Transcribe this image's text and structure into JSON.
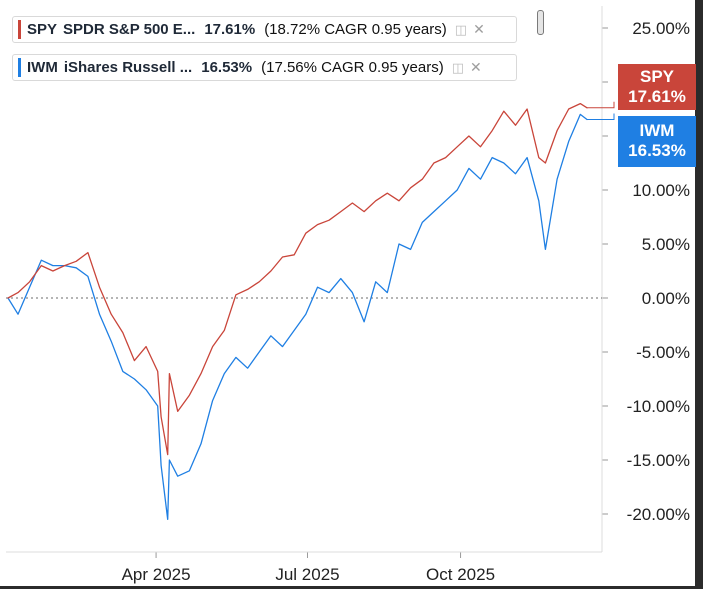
{
  "legend": [
    {
      "ticker": "SPY",
      "name": "SPDR S&P 500 E...",
      "pct": "17.61%",
      "cagr": "(18.72% CAGR 0.95 years)",
      "color": "#c9453a",
      "icon": "layers-icon",
      "close": "close-icon"
    },
    {
      "ticker": "IWM",
      "name": "iShares Russell ...",
      "pct": "16.53%",
      "cagr": "(17.56% CAGR 0.95 years)",
      "color": "#1f7fe3",
      "icon": "layers-icon",
      "close": "close-icon"
    }
  ],
  "price_tags": [
    {
      "ticker": "SPY",
      "value": "17.61%",
      "color": "#c9453a"
    },
    {
      "ticker": "IWM",
      "value": "16.53%",
      "color": "#1f7fe3"
    }
  ],
  "chart_data": {
    "type": "line",
    "title": "",
    "xlabel": "",
    "ylabel": "",
    "x_ticks": [
      "Apr 2025",
      "Jul 2025",
      "Oct 2025"
    ],
    "y_ticks": [
      "25.00%",
      "20.00%",
      "15.00%",
      "10.00%",
      "5.00%",
      "0.00%",
      "-5.00%",
      "-10.00%",
      "-15.00%",
      "-20.00%"
    ],
    "ylim": [
      -24,
      26
    ],
    "baseline": 0,
    "grid": false,
    "legend_position": "top-left",
    "series": [
      {
        "name": "SPY",
        "color": "#c9453a",
        "values": [
          [
            "2025-01-02",
            0.0
          ],
          [
            "2025-01-08",
            0.5
          ],
          [
            "2025-01-15",
            1.5
          ],
          [
            "2025-01-22",
            3.0
          ],
          [
            "2025-01-29",
            2.5
          ],
          [
            "2025-02-05",
            3.0
          ],
          [
            "2025-02-12",
            3.4
          ],
          [
            "2025-02-19",
            4.2
          ],
          [
            "2025-02-26",
            1.0
          ],
          [
            "2025-03-05",
            -1.5
          ],
          [
            "2025-03-12",
            -3.2
          ],
          [
            "2025-03-19",
            -5.8
          ],
          [
            "2025-03-26",
            -4.5
          ],
          [
            "2025-04-02",
            -6.8
          ],
          [
            "2025-04-04",
            -11.0
          ],
          [
            "2025-04-08",
            -14.5
          ],
          [
            "2025-04-09",
            -7.0
          ],
          [
            "2025-04-14",
            -10.5
          ],
          [
            "2025-04-21",
            -9.0
          ],
          [
            "2025-04-28",
            -7.0
          ],
          [
            "2025-05-05",
            -4.5
          ],
          [
            "2025-05-12",
            -3.0
          ],
          [
            "2025-05-19",
            0.3
          ],
          [
            "2025-05-26",
            0.8
          ],
          [
            "2025-06-02",
            1.5
          ],
          [
            "2025-06-09",
            2.5
          ],
          [
            "2025-06-16",
            3.8
          ],
          [
            "2025-06-23",
            4.0
          ],
          [
            "2025-06-30",
            6.0
          ],
          [
            "2025-07-07",
            6.8
          ],
          [
            "2025-07-14",
            7.2
          ],
          [
            "2025-07-21",
            8.0
          ],
          [
            "2025-07-28",
            8.8
          ],
          [
            "2025-08-04",
            8.0
          ],
          [
            "2025-08-11",
            9.0
          ],
          [
            "2025-08-18",
            9.7
          ],
          [
            "2025-08-25",
            9.0
          ],
          [
            "2025-09-01",
            10.2
          ],
          [
            "2025-09-08",
            11.0
          ],
          [
            "2025-09-15",
            12.5
          ],
          [
            "2025-09-22",
            13.0
          ],
          [
            "2025-09-29",
            14.0
          ],
          [
            "2025-10-06",
            15.0
          ],
          [
            "2025-10-13",
            14.0
          ],
          [
            "2025-10-20",
            15.5
          ],
          [
            "2025-10-27",
            17.3
          ],
          [
            "2025-11-03",
            16.0
          ],
          [
            "2025-11-10",
            17.5
          ],
          [
            "2025-11-17",
            13.0
          ],
          [
            "2025-11-21",
            12.5
          ],
          [
            "2025-11-28",
            15.5
          ],
          [
            "2025-12-05",
            17.5
          ],
          [
            "2025-12-12",
            18.0
          ],
          [
            "2025-12-16",
            17.61
          ]
        ]
      },
      {
        "name": "IWM",
        "color": "#1f7fe3",
        "values": [
          [
            "2025-01-02",
            0.0
          ],
          [
            "2025-01-08",
            -1.5
          ],
          [
            "2025-01-15",
            1.0
          ],
          [
            "2025-01-22",
            3.5
          ],
          [
            "2025-01-29",
            3.0
          ],
          [
            "2025-02-05",
            3.0
          ],
          [
            "2025-02-12",
            2.8
          ],
          [
            "2025-02-19",
            2.0
          ],
          [
            "2025-02-26",
            -1.5
          ],
          [
            "2025-03-05",
            -4.0
          ],
          [
            "2025-03-12",
            -6.8
          ],
          [
            "2025-03-19",
            -7.5
          ],
          [
            "2025-03-26",
            -8.5
          ],
          [
            "2025-04-02",
            -10.0
          ],
          [
            "2025-04-04",
            -15.5
          ],
          [
            "2025-04-08",
            -20.5
          ],
          [
            "2025-04-09",
            -15.0
          ],
          [
            "2025-04-14",
            -16.5
          ],
          [
            "2025-04-21",
            -16.0
          ],
          [
            "2025-04-28",
            -13.5
          ],
          [
            "2025-05-05",
            -9.5
          ],
          [
            "2025-05-12",
            -7.0
          ],
          [
            "2025-05-19",
            -5.5
          ],
          [
            "2025-05-26",
            -6.5
          ],
          [
            "2025-06-02",
            -5.0
          ],
          [
            "2025-06-09",
            -3.5
          ],
          [
            "2025-06-16",
            -4.5
          ],
          [
            "2025-06-23",
            -3.0
          ],
          [
            "2025-06-30",
            -1.5
          ],
          [
            "2025-07-07",
            1.0
          ],
          [
            "2025-07-14",
            0.5
          ],
          [
            "2025-07-21",
            1.8
          ],
          [
            "2025-07-28",
            0.5
          ],
          [
            "2025-08-04",
            -2.2
          ],
          [
            "2025-08-11",
            1.5
          ],
          [
            "2025-08-18",
            0.5
          ],
          [
            "2025-08-25",
            5.0
          ],
          [
            "2025-09-01",
            4.5
          ],
          [
            "2025-09-08",
            7.0
          ],
          [
            "2025-09-15",
            8.0
          ],
          [
            "2025-09-22",
            9.0
          ],
          [
            "2025-09-29",
            10.0
          ],
          [
            "2025-10-06",
            12.0
          ],
          [
            "2025-10-13",
            11.0
          ],
          [
            "2025-10-20",
            13.0
          ],
          [
            "2025-10-27",
            12.5
          ],
          [
            "2025-11-03",
            11.5
          ],
          [
            "2025-11-10",
            13.0
          ],
          [
            "2025-11-17",
            9.0
          ],
          [
            "2025-11-21",
            4.5
          ],
          [
            "2025-11-28",
            11.0
          ],
          [
            "2025-12-05",
            14.5
          ],
          [
            "2025-12-12",
            17.0
          ],
          [
            "2025-12-16",
            16.53
          ]
        ]
      }
    ]
  }
}
